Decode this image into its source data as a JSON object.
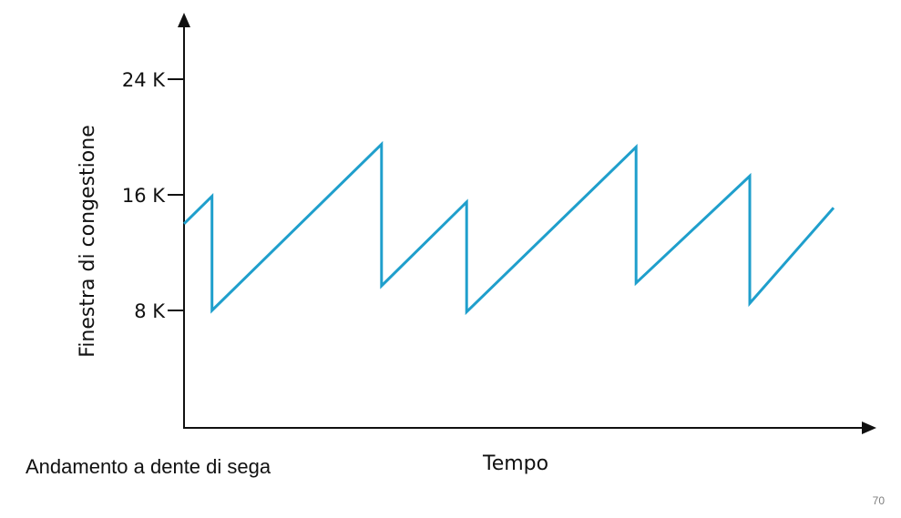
{
  "caption": "Andamento a dente di sega",
  "page_number": "70",
  "colors": {
    "series": "#1f9fcc",
    "axis": "#111111"
  },
  "chart_data": {
    "type": "line",
    "title": "",
    "xlabel": "Tempo",
    "ylabel": "Finestra di congestione",
    "yticks": [
      {
        "value": 8,
        "label": "8 K"
      },
      {
        "value": 16,
        "label": "16 K"
      },
      {
        "value": 24,
        "label": "24 K"
      }
    ],
    "xlim": [
      0,
      100
    ],
    "ylim": [
      0,
      28
    ],
    "grid": false,
    "legend": "none",
    "series": [
      {
        "values": [
          [
            0,
            14.0
          ],
          [
            4.3,
            15.9
          ],
          [
            4.3,
            8.0
          ],
          [
            30.4,
            19.5
          ],
          [
            30.4,
            9.7
          ],
          [
            43.5,
            15.5
          ],
          [
            43.5,
            7.9
          ],
          [
            69.6,
            19.3
          ],
          [
            69.6,
            9.9
          ],
          [
            87.1,
            17.3
          ],
          [
            87.1,
            8.5
          ],
          [
            100,
            15.1
          ]
        ]
      }
    ]
  }
}
